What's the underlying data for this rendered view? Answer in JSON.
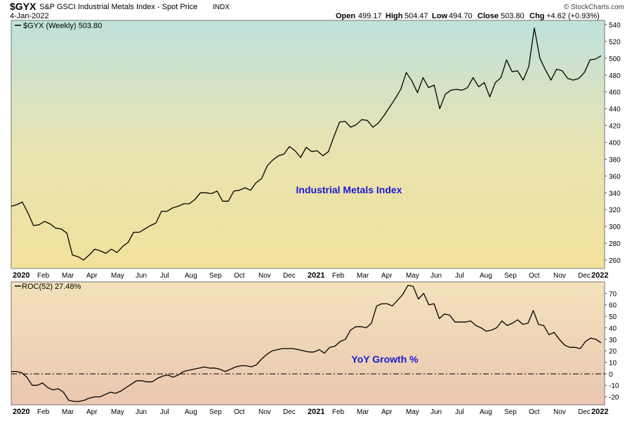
{
  "header": {
    "symbol": "$GYX",
    "name": "S&P GSCI Industrial Metals Index - Spot Price",
    "exchange": "INDX",
    "date": "4-Jan-2022",
    "ohlc": {
      "open_label": "Open",
      "open": "499.17",
      "high_label": "High",
      "high": "504.47",
      "low_label": "Low",
      "low": "494.70",
      "close_label": "Close",
      "close": "503.80",
      "chg_label": "Chg",
      "chg": "+4.62 (+0.93%)"
    },
    "watermark": "© StockCharts.com"
  },
  "colors": {
    "line": "#000000",
    "annotation": "#1a1ad0",
    "top_gradient": [
      "#bfe2dc",
      "#eee39a",
      "#f1dfa6"
    ],
    "bottom_gradient": [
      "#f3e1b8",
      "#ecc6b0"
    ]
  },
  "chart_data": [
    {
      "type": "line",
      "legend": "$GYX (Weekly) 503.80",
      "annotation": "Industrial Metals Index",
      "ylim": [
        250,
        545
      ],
      "yticks": [
        "260",
        "280",
        "300",
        "320",
        "340",
        "360",
        "380",
        "400",
        "420",
        "440",
        "460",
        "480",
        "500",
        "520",
        "540"
      ],
      "x_labels": [
        "2020",
        "Feb",
        "Mar",
        "Apr",
        "May",
        "Jun",
        "Jul",
        "Aug",
        "Sep",
        "Oct",
        "Nov",
        "Dec",
        "2021",
        "Feb",
        "Mar",
        "Apr",
        "May",
        "Jun",
        "Jul",
        "Aug",
        "Sep",
        "Oct",
        "Nov",
        "Dec",
        "2022"
      ],
      "values": [
        324,
        326,
        329,
        316,
        301,
        302,
        306,
        303,
        298,
        297,
        292,
        266,
        264,
        260,
        266,
        273,
        271,
        268,
        273,
        269,
        276,
        281,
        293,
        293,
        297,
        301,
        304,
        318,
        318,
        322,
        324,
        327,
        327,
        332,
        340,
        340,
        339,
        342,
        330,
        330,
        342,
        343,
        346,
        343,
        352,
        357,
        372,
        379,
        384,
        386,
        395,
        390,
        382,
        394,
        389,
        390,
        384,
        389,
        407,
        424,
        425,
        418,
        421,
        427,
        426,
        418,
        423,
        432,
        442,
        452,
        463,
        483,
        473,
        459,
        477,
        465,
        468,
        440,
        457,
        462,
        463,
        462,
        465,
        477,
        466,
        471,
        454,
        471,
        477,
        498,
        484,
        485,
        474,
        490,
        536,
        500,
        486,
        474,
        487,
        485,
        476,
        474,
        476,
        483,
        498,
        499,
        503
      ]
    },
    {
      "type": "line",
      "legend": "ROC(52) 27.48%",
      "annotation": "YoY Growth %",
      "ylim": [
        -27,
        80
      ],
      "yticks": [
        "-20",
        "-10",
        "0",
        "10",
        "20",
        "30",
        "40",
        "50",
        "60",
        "70"
      ],
      "x_labels": [
        "2020",
        "Feb",
        "Mar",
        "Apr",
        "May",
        "Jun",
        "Jul",
        "Aug",
        "Sep",
        "Oct",
        "Nov",
        "Dec",
        "2021",
        "Feb",
        "Mar",
        "Apr",
        "May",
        "Jun",
        "Jul",
        "Aug",
        "Sep",
        "Oct",
        "Nov",
        "Dec",
        "2022"
      ],
      "values": [
        2,
        2,
        1,
        -3,
        -10,
        -10,
        -8,
        -12,
        -14,
        -13,
        -16,
        -23,
        -24,
        -24,
        -23,
        -21,
        -20,
        -20,
        -18,
        -16,
        -17,
        -15,
        -12,
        -9,
        -6,
        -6,
        -7,
        -7,
        -4,
        -2,
        -1,
        -3,
        -1,
        2,
        3,
        4,
        5,
        6,
        5,
        5,
        4,
        2,
        4,
        6,
        7,
        7,
        6,
        8,
        13,
        17,
        20,
        21,
        22,
        22,
        22,
        21,
        20,
        19,
        19,
        21,
        18,
        23,
        24,
        28,
        30,
        38,
        41,
        41,
        40,
        44,
        59,
        61,
        61,
        59,
        64,
        69,
        77,
        76,
        65,
        70,
        60,
        61,
        48,
        52,
        51,
        45,
        45,
        45,
        46,
        42,
        40,
        37,
        38,
        40,
        46,
        42,
        44,
        47,
        43,
        44,
        55,
        43,
        42,
        34,
        36,
        30,
        25,
        23,
        23,
        22,
        28,
        31,
        30,
        27
      ]
    }
  ]
}
